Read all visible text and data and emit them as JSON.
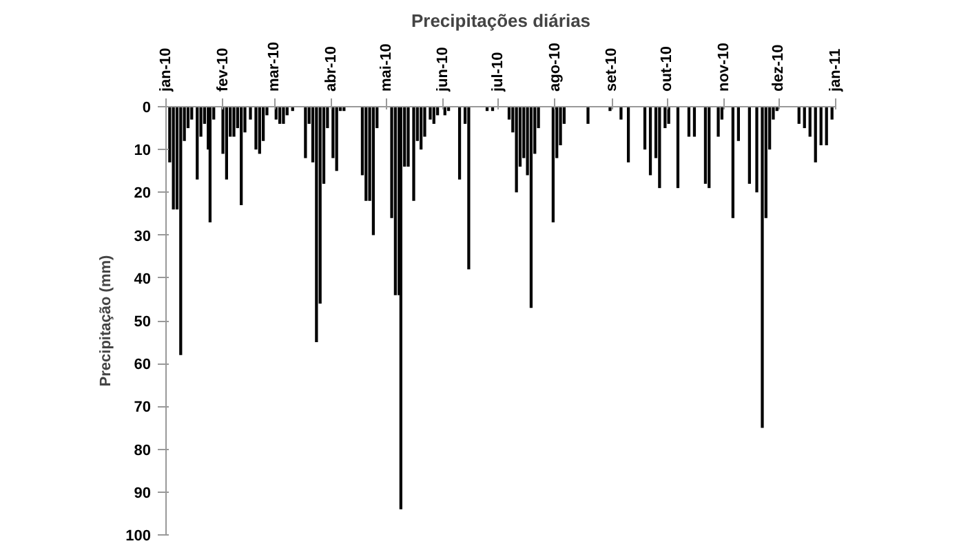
{
  "chart_data": {
    "type": "bar",
    "title": "Precipitações diárias",
    "ylabel": "Precipitação (mm)",
    "x": [
      "2010-01-03",
      "2010-01-05",
      "2010-01-07",
      "2010-01-09",
      "2010-01-11",
      "2010-01-13",
      "2010-01-15",
      "2010-01-18",
      "2010-01-20",
      "2010-01-22",
      "2010-01-24",
      "2010-01-25",
      "2010-01-27",
      "2010-02-01",
      "2010-02-03",
      "2010-02-05",
      "2010-02-07",
      "2010-02-09",
      "2010-02-11",
      "2010-02-13",
      "2010-02-16",
      "2010-02-19",
      "2010-02-21",
      "2010-02-23",
      "2010-02-25",
      "2010-03-02",
      "2010-03-04",
      "2010-03-06",
      "2010-03-08",
      "2010-03-11",
      "2010-03-18",
      "2010-03-20",
      "2010-03-22",
      "2010-03-24",
      "2010-03-26",
      "2010-03-28",
      "2010-03-30",
      "2010-04-02",
      "2010-04-04",
      "2010-04-06",
      "2010-04-08",
      "2010-04-18",
      "2010-04-20",
      "2010-04-22",
      "2010-04-24",
      "2010-04-26",
      "2010-05-04",
      "2010-05-06",
      "2010-05-08",
      "2010-05-09",
      "2010-05-11",
      "2010-05-13",
      "2010-05-16",
      "2010-05-18",
      "2010-05-20",
      "2010-05-22",
      "2010-05-25",
      "2010-05-27",
      "2010-05-29",
      "2010-06-02",
      "2010-06-04",
      "2010-06-10",
      "2010-06-13",
      "2010-06-15",
      "2010-06-25",
      "2010-06-28",
      "2010-07-07",
      "2010-07-09",
      "2010-07-11",
      "2010-07-13",
      "2010-07-15",
      "2010-07-17",
      "2010-07-19",
      "2010-07-21",
      "2010-07-23",
      "2010-07-31",
      "2010-08-02",
      "2010-08-04",
      "2010-08-06",
      "2010-08-19",
      "2010-08-31",
      "2010-09-06",
      "2010-09-10",
      "2010-09-19",
      "2010-09-22",
      "2010-09-25",
      "2010-09-27",
      "2010-09-30",
      "2010-10-02",
      "2010-10-07",
      "2010-10-13",
      "2010-10-16",
      "2010-10-22",
      "2010-10-24",
      "2010-10-29",
      "2010-10-31",
      "2010-11-06",
      "2010-11-09",
      "2010-11-15",
      "2010-11-19",
      "2010-11-22",
      "2010-11-24",
      "2010-11-26",
      "2010-11-28",
      "2010-11-30",
      "2010-12-12",
      "2010-12-15",
      "2010-12-18",
      "2010-12-21",
      "2010-12-24",
      "2010-12-27",
      "2010-12-30"
    ],
    "values": [
      13,
      24,
      24,
      58,
      8,
      5,
      3,
      17,
      7,
      4,
      10,
      27,
      3,
      11,
      17,
      7,
      7,
      5,
      23,
      6,
      3,
      10,
      11,
      8,
      2,
      3,
      4,
      4,
      2,
      1,
      12,
      4,
      13,
      55,
      46,
      18,
      5,
      12,
      15,
      1,
      1,
      16,
      22,
      22,
      30,
      5,
      26,
      44,
      44,
      94,
      14,
      14,
      22,
      8,
      10,
      7,
      3,
      4,
      2,
      2,
      1,
      17,
      4,
      38,
      1,
      1,
      3,
      6,
      20,
      14,
      12,
      16,
      47,
      11,
      5,
      27,
      12,
      9,
      4,
      4,
      1,
      3,
      13,
      10,
      16,
      12,
      19,
      5,
      4,
      19,
      7,
      7,
      18,
      19,
      7,
      3,
      26,
      8,
      18,
      20,
      75,
      26,
      10,
      3,
      1,
      4,
      5,
      7,
      13,
      9,
      9,
      3
    ],
    "color": "#000000",
    "xlim": [
      "2010-01-01",
      "2011-01-01"
    ],
    "xticks": [
      {
        "value": "2010-01-01",
        "label": "jan-10"
      },
      {
        "value": "2010-02-01",
        "label": "fev-10"
      },
      {
        "value": "2010-03-01",
        "label": "mar-10"
      },
      {
        "value": "2010-04-01",
        "label": "abr-10"
      },
      {
        "value": "2010-05-01",
        "label": "mai-10"
      },
      {
        "value": "2010-06-01",
        "label": "jun-10"
      },
      {
        "value": "2010-07-01",
        "label": "jul-10"
      },
      {
        "value": "2010-08-01",
        "label": "ago-10"
      },
      {
        "value": "2010-09-01",
        "label": "set-10"
      },
      {
        "value": "2010-10-01",
        "label": "out-10"
      },
      {
        "value": "2010-11-01",
        "label": "nov-10"
      },
      {
        "value": "2010-12-01",
        "label": "dez-10"
      },
      {
        "value": "2011-01-01",
        "label": "jan-11"
      }
    ],
    "ylim": [
      100,
      0
    ],
    "yticks": [
      0,
      10,
      20,
      30,
      40,
      50,
      60,
      70,
      80,
      90,
      100
    ],
    "grid": false
  }
}
